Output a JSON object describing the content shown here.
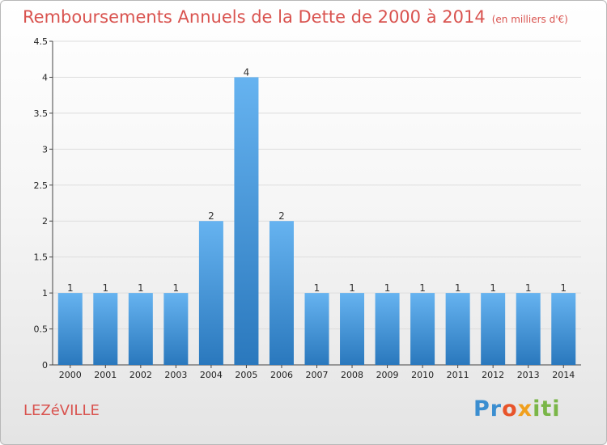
{
  "header": {
    "title": "Remboursements Annuels de la Dette de 2000 à 2014",
    "unit": "(en milliers d'€)"
  },
  "footer": {
    "city": "LEZéVILLE",
    "logo_parts": [
      "Pr",
      "o",
      "x",
      "iti"
    ]
  },
  "colors": {
    "title": "#d9534f",
    "bar_top": "#66b3f0",
    "bar_bottom": "#2a78bd",
    "grid": "#dddddd"
  },
  "chart_data": {
    "type": "bar",
    "title": "Remboursements Annuels de la Dette de 2000 à 2014",
    "unit": "(en milliers d'€)",
    "categories": [
      "2000",
      "2001",
      "2002",
      "2003",
      "2004",
      "2005",
      "2006",
      "2007",
      "2008",
      "2009",
      "2010",
      "2011",
      "2012",
      "2013",
      "2014"
    ],
    "values": [
      1,
      1,
      1,
      1,
      2,
      4,
      2,
      1,
      1,
      1,
      1,
      1,
      1,
      1,
      1
    ],
    "value_labels": [
      "1",
      "1",
      "1",
      "1",
      "2",
      "4",
      "2",
      "1",
      "1",
      "1",
      "1",
      "1",
      "1",
      "1",
      "1"
    ],
    "yticks": [
      0,
      0.5,
      1,
      1.5,
      2,
      2.5,
      3,
      3.5,
      4,
      4.5
    ],
    "ytick_labels": [
      "0",
      "0.5",
      "1",
      "1.5",
      "2",
      "2.5",
      "3",
      "3.5",
      "4",
      "4.5"
    ],
    "ylim": [
      0,
      4.5
    ],
    "grid": true
  }
}
